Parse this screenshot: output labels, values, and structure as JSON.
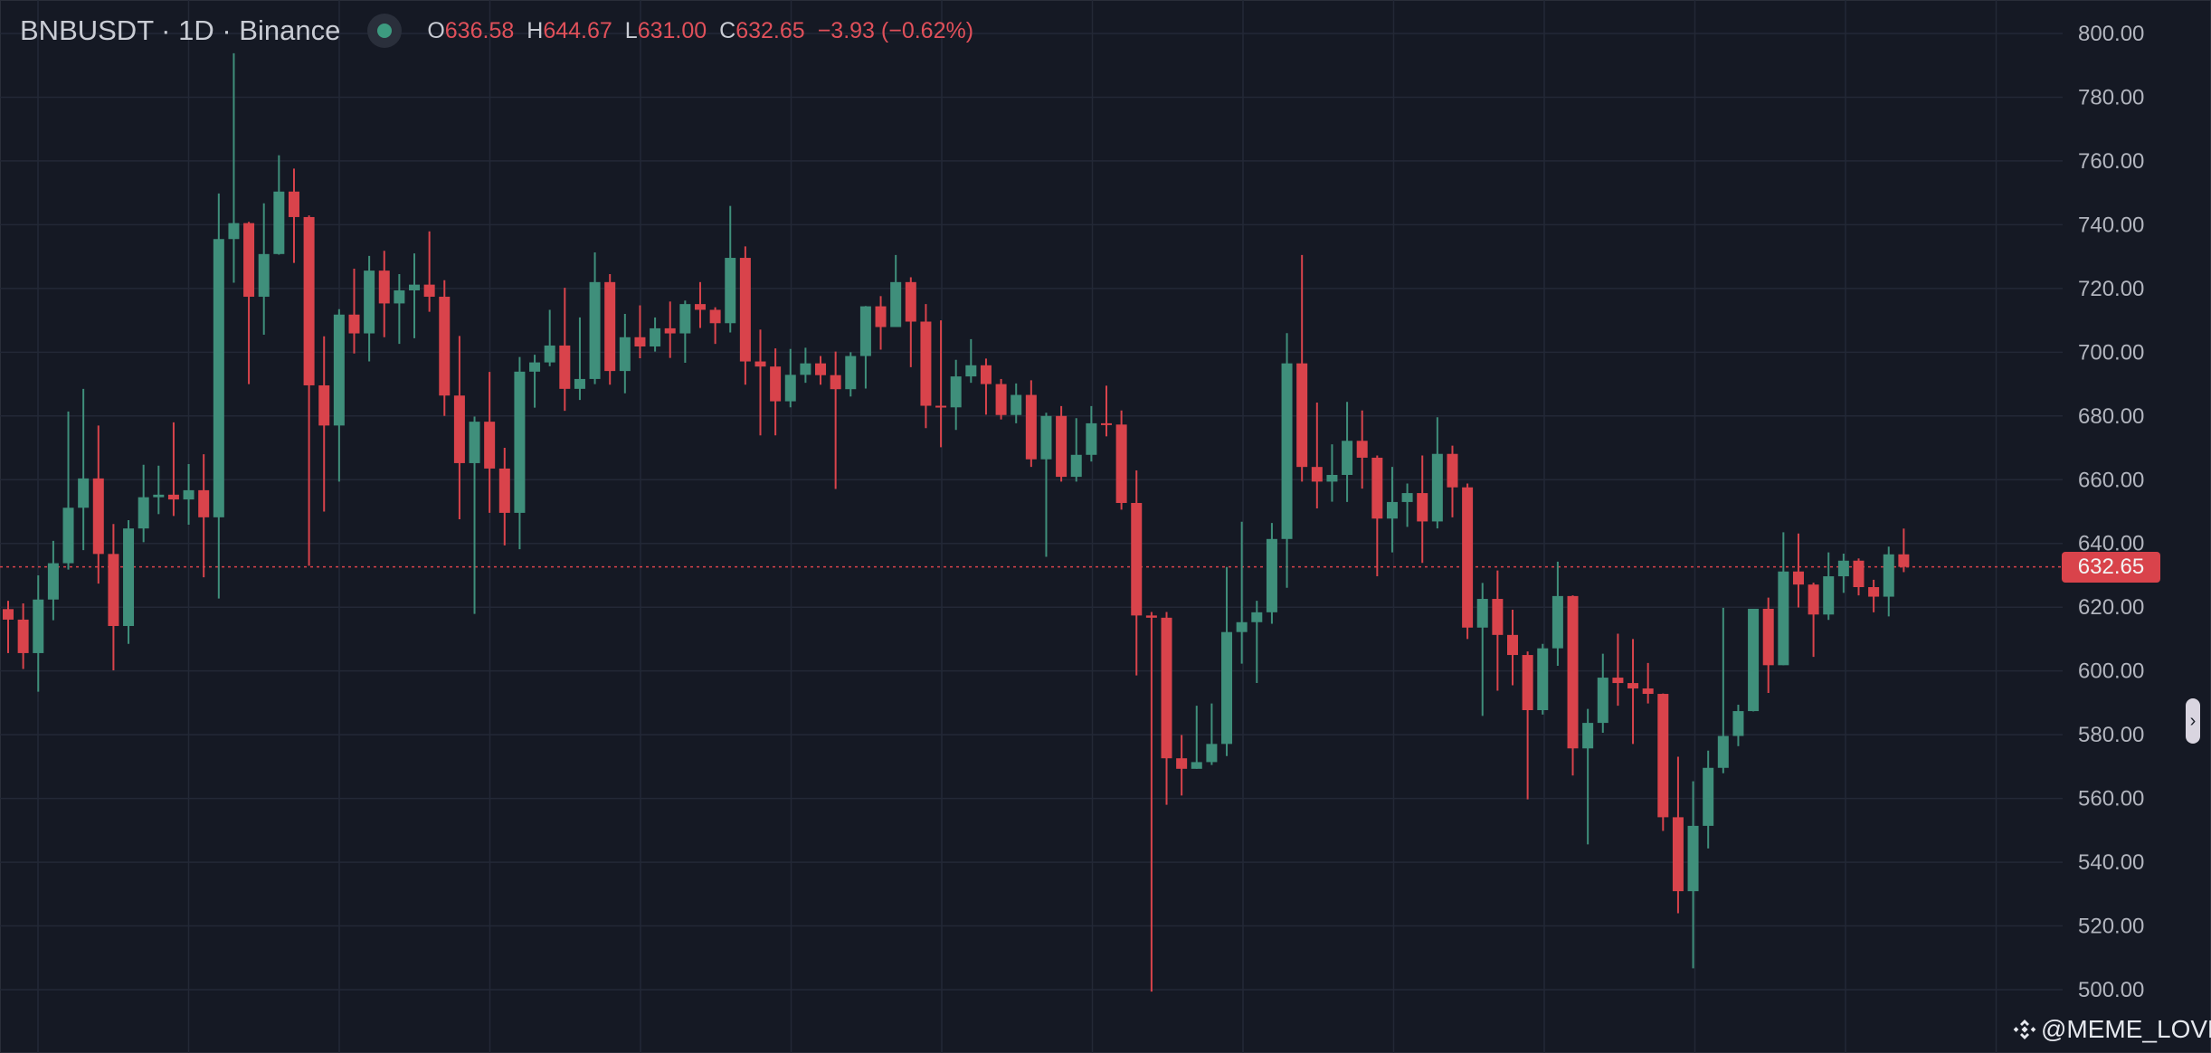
{
  "header": {
    "symbol": "BNBUSDT · 1D · Binance",
    "status_color": "#3d9b80",
    "open_label": "O",
    "open": "636.58",
    "high_label": "H",
    "high": "644.67",
    "low_label": "L",
    "low": "631.00",
    "close_label": "C",
    "close": "632.65",
    "change": "−3.93 (−0.62%)"
  },
  "last_price_tag": "632.65",
  "scroll_button": "›",
  "watermark": {
    "text": "@MEME_LOVER",
    "icon": "binance-logo-icon"
  },
  "colors": {
    "up": "#3f8f7b",
    "down": "#d9434b",
    "background": "#151924",
    "grid": "#232836",
    "axis_text": "#b2b5be"
  },
  "chart_data": {
    "type": "candlestick",
    "title": "",
    "xlabel": "",
    "ylabel": "",
    "ylim": [
      500,
      800
    ],
    "grid": true,
    "y_axis_position": "right",
    "y_ticks": [
      "800.00",
      "780.00",
      "760.00",
      "740.00",
      "720.00",
      "700.00",
      "680.00",
      "660.00",
      "640.00",
      "620.00",
      "600.00",
      "580.00",
      "560.00",
      "540.00",
      "520.00",
      "500.00"
    ],
    "last_price": 632.65,
    "candles": [
      {
        "o": 619.4,
        "h": 622.0,
        "l": 605.6,
        "c": 616.1
      },
      {
        "o": 616.1,
        "h": 621.2,
        "l": 600.6,
        "c": 605.6
      },
      {
        "o": 605.6,
        "h": 630.0,
        "l": 593.5,
        "c": 622.4
      },
      {
        "o": 622.4,
        "h": 640.8,
        "l": 615.9,
        "c": 633.8
      },
      {
        "o": 633.8,
        "h": 681.4,
        "l": 631.8,
        "c": 651.2
      },
      {
        "o": 651.2,
        "h": 688.5,
        "l": 637.9,
        "c": 660.4
      },
      {
        "o": 660.4,
        "h": 677.0,
        "l": 627.4,
        "c": 636.7
      },
      {
        "o": 636.7,
        "h": 646.1,
        "l": 600.2,
        "c": 614.1
      },
      {
        "o": 614.1,
        "h": 647.3,
        "l": 608.5,
        "c": 644.7
      },
      {
        "o": 644.7,
        "h": 664.7,
        "l": 640.4,
        "c": 654.5
      },
      {
        "o": 654.5,
        "h": 664.4,
        "l": 649.2,
        "c": 655.3
      },
      {
        "o": 655.3,
        "h": 678.0,
        "l": 648.6,
        "c": 653.8
      },
      {
        "o": 653.8,
        "h": 664.9,
        "l": 645.9,
        "c": 656.7
      },
      {
        "o": 656.7,
        "h": 668.0,
        "l": 629.4,
        "c": 648.2
      },
      {
        "o": 648.2,
        "h": 749.8,
        "l": 622.7,
        "c": 735.5
      },
      {
        "o": 735.5,
        "h": 793.8,
        "l": 721.8,
        "c": 740.5
      },
      {
        "o": 740.5,
        "h": 740.9,
        "l": 690.0,
        "c": 717.4
      },
      {
        "o": 717.4,
        "h": 746.7,
        "l": 705.5,
        "c": 730.8
      },
      {
        "o": 730.8,
        "h": 761.8,
        "l": 730.6,
        "c": 750.4
      },
      {
        "o": 750.4,
        "h": 757.6,
        "l": 728.0,
        "c": 742.4
      },
      {
        "o": 742.4,
        "h": 742.9,
        "l": 633.0,
        "c": 689.6
      },
      {
        "o": 689.6,
        "h": 705.0,
        "l": 650.0,
        "c": 677.0
      },
      {
        "o": 677.0,
        "h": 713.5,
        "l": 659.4,
        "c": 711.8
      },
      {
        "o": 711.8,
        "h": 726.2,
        "l": 699.6,
        "c": 705.9
      },
      {
        "o": 705.9,
        "h": 730.2,
        "l": 697.1,
        "c": 725.6
      },
      {
        "o": 725.6,
        "h": 731.8,
        "l": 704.7,
        "c": 715.3
      },
      {
        "o": 715.3,
        "h": 724.5,
        "l": 702.6,
        "c": 719.4
      },
      {
        "o": 719.4,
        "h": 731.0,
        "l": 704.4,
        "c": 721.2
      },
      {
        "o": 721.2,
        "h": 737.9,
        "l": 712.7,
        "c": 717.4
      },
      {
        "o": 717.4,
        "h": 722.6,
        "l": 680.0,
        "c": 686.4
      },
      {
        "o": 686.4,
        "h": 705.1,
        "l": 647.6,
        "c": 665.2
      },
      {
        "o": 665.2,
        "h": 679.8,
        "l": 617.9,
        "c": 678.2
      },
      {
        "o": 678.2,
        "h": 693.8,
        "l": 649.6,
        "c": 663.5
      },
      {
        "o": 663.5,
        "h": 670.0,
        "l": 639.4,
        "c": 649.6
      },
      {
        "o": 649.6,
        "h": 698.5,
        "l": 638.2,
        "c": 693.9
      },
      {
        "o": 693.9,
        "h": 699.2,
        "l": 682.6,
        "c": 696.8
      },
      {
        "o": 696.8,
        "h": 713.3,
        "l": 695.6,
        "c": 702.1
      },
      {
        "o": 702.1,
        "h": 720.2,
        "l": 681.6,
        "c": 688.5
      },
      {
        "o": 688.5,
        "h": 710.9,
        "l": 685.0,
        "c": 691.6
      },
      {
        "o": 691.6,
        "h": 731.3,
        "l": 690.0,
        "c": 722.0
      },
      {
        "o": 722.0,
        "h": 724.5,
        "l": 689.8,
        "c": 694.1
      },
      {
        "o": 694.1,
        "h": 712.0,
        "l": 687.1,
        "c": 704.7
      },
      {
        "o": 704.7,
        "h": 714.7,
        "l": 698.1,
        "c": 701.8
      },
      {
        "o": 701.8,
        "h": 710.9,
        "l": 700.2,
        "c": 707.5
      },
      {
        "o": 707.5,
        "h": 715.9,
        "l": 698.2,
        "c": 705.9
      },
      {
        "o": 705.9,
        "h": 716.2,
        "l": 696.7,
        "c": 715.1
      },
      {
        "o": 715.1,
        "h": 722.0,
        "l": 707.6,
        "c": 713.3
      },
      {
        "o": 713.3,
        "h": 714.1,
        "l": 702.6,
        "c": 709.1
      },
      {
        "o": 709.1,
        "h": 745.9,
        "l": 706.2,
        "c": 729.6
      },
      {
        "o": 729.6,
        "h": 733.2,
        "l": 689.8,
        "c": 697.1
      },
      {
        "o": 697.1,
        "h": 707.1,
        "l": 673.9,
        "c": 695.5
      },
      {
        "o": 695.5,
        "h": 701.2,
        "l": 673.9,
        "c": 684.6
      },
      {
        "o": 684.6,
        "h": 701.0,
        "l": 682.7,
        "c": 692.9
      },
      {
        "o": 692.9,
        "h": 701.4,
        "l": 690.4,
        "c": 696.5
      },
      {
        "o": 696.5,
        "h": 698.8,
        "l": 689.8,
        "c": 692.8
      },
      {
        "o": 692.8,
        "h": 700.2,
        "l": 657.1,
        "c": 688.4
      },
      {
        "o": 688.4,
        "h": 700.0,
        "l": 686.1,
        "c": 698.8
      },
      {
        "o": 698.8,
        "h": 714.5,
        "l": 688.6,
        "c": 714.4
      },
      {
        "o": 714.4,
        "h": 717.6,
        "l": 700.8,
        "c": 707.9
      },
      {
        "o": 707.9,
        "h": 730.5,
        "l": 707.9,
        "c": 722.0
      },
      {
        "o": 722.0,
        "h": 723.5,
        "l": 695.3,
        "c": 709.6
      },
      {
        "o": 709.6,
        "h": 715.1,
        "l": 676.2,
        "c": 683.2
      },
      {
        "o": 683.2,
        "h": 710.0,
        "l": 670.2,
        "c": 682.7
      },
      {
        "o": 682.7,
        "h": 697.6,
        "l": 675.6,
        "c": 692.4
      },
      {
        "o": 692.4,
        "h": 704.1,
        "l": 690.4,
        "c": 695.9
      },
      {
        "o": 695.9,
        "h": 698.0,
        "l": 680.4,
        "c": 690.0
      },
      {
        "o": 690.0,
        "h": 691.6,
        "l": 678.9,
        "c": 680.3
      },
      {
        "o": 680.3,
        "h": 690.2,
        "l": 677.7,
        "c": 686.6
      },
      {
        "o": 686.6,
        "h": 691.2,
        "l": 664.0,
        "c": 666.4
      },
      {
        "o": 666.4,
        "h": 681.0,
        "l": 635.8,
        "c": 680.0
      },
      {
        "o": 680.0,
        "h": 683.1,
        "l": 659.4,
        "c": 660.9
      },
      {
        "o": 660.9,
        "h": 679.3,
        "l": 659.4,
        "c": 667.8
      },
      {
        "o": 667.8,
        "h": 683.1,
        "l": 665.7,
        "c": 677.7
      },
      {
        "o": 677.7,
        "h": 689.5,
        "l": 673.6,
        "c": 677.3
      },
      {
        "o": 677.3,
        "h": 681.7,
        "l": 650.6,
        "c": 652.7
      },
      {
        "o": 652.7,
        "h": 662.9,
        "l": 598.6,
        "c": 617.4
      },
      {
        "o": 617.4,
        "h": 618.5,
        "l": 499.4,
        "c": 616.7
      },
      {
        "o": 616.7,
        "h": 618.5,
        "l": 558.0,
        "c": 572.6
      },
      {
        "o": 572.6,
        "h": 579.9,
        "l": 560.9,
        "c": 569.3
      },
      {
        "o": 569.3,
        "h": 589.1,
        "l": 569.3,
        "c": 571.4
      },
      {
        "o": 571.4,
        "h": 589.8,
        "l": 570.5,
        "c": 577.1
      },
      {
        "o": 577.1,
        "h": 632.6,
        "l": 573.3,
        "c": 612.2
      },
      {
        "o": 612.2,
        "h": 646.8,
        "l": 602.3,
        "c": 615.3
      },
      {
        "o": 615.3,
        "h": 622.0,
        "l": 596.2,
        "c": 618.4
      },
      {
        "o": 618.4,
        "h": 646.4,
        "l": 614.8,
        "c": 641.4
      },
      {
        "o": 641.4,
        "h": 706.0,
        "l": 626.1,
        "c": 696.5
      },
      {
        "o": 696.5,
        "h": 730.5,
        "l": 659.4,
        "c": 664.0
      },
      {
        "o": 664.0,
        "h": 684.2,
        "l": 651.0,
        "c": 659.4
      },
      {
        "o": 659.4,
        "h": 671.1,
        "l": 653.1,
        "c": 661.5
      },
      {
        "o": 661.5,
        "h": 684.4,
        "l": 653.0,
        "c": 672.2
      },
      {
        "o": 672.2,
        "h": 681.7,
        "l": 657.2,
        "c": 666.9
      },
      {
        "o": 666.9,
        "h": 667.6,
        "l": 629.7,
        "c": 647.8
      },
      {
        "o": 647.8,
        "h": 664.0,
        "l": 637.2,
        "c": 653.0
      },
      {
        "o": 653.0,
        "h": 658.8,
        "l": 645.2,
        "c": 655.8
      },
      {
        "o": 655.8,
        "h": 667.6,
        "l": 633.9,
        "c": 646.9
      },
      {
        "o": 646.9,
        "h": 679.6,
        "l": 644.7,
        "c": 668.1
      },
      {
        "o": 668.1,
        "h": 670.7,
        "l": 648.2,
        "c": 657.6
      },
      {
        "o": 657.6,
        "h": 658.8,
        "l": 610.0,
        "c": 613.6
      },
      {
        "o": 613.6,
        "h": 627.6,
        "l": 585.9,
        "c": 622.6
      },
      {
        "o": 622.6,
        "h": 631.5,
        "l": 593.8,
        "c": 611.3
      },
      {
        "o": 611.3,
        "h": 619.2,
        "l": 595.5,
        "c": 605.0
      },
      {
        "o": 605.0,
        "h": 606.1,
        "l": 559.7,
        "c": 587.7
      },
      {
        "o": 587.7,
        "h": 608.5,
        "l": 586.3,
        "c": 607.1
      },
      {
        "o": 607.1,
        "h": 634.3,
        "l": 601.6,
        "c": 623.5
      },
      {
        "o": 623.5,
        "h": 623.7,
        "l": 567.2,
        "c": 575.7
      },
      {
        "o": 575.7,
        "h": 588.1,
        "l": 545.6,
        "c": 583.7
      },
      {
        "o": 583.7,
        "h": 605.4,
        "l": 580.6,
        "c": 597.9
      },
      {
        "o": 597.9,
        "h": 611.7,
        "l": 589.1,
        "c": 596.2
      },
      {
        "o": 596.2,
        "h": 610.0,
        "l": 577.1,
        "c": 594.5
      },
      {
        "o": 594.5,
        "h": 602.5,
        "l": 589.8,
        "c": 592.8
      },
      {
        "o": 592.8,
        "h": 592.9,
        "l": 549.8,
        "c": 554.1
      },
      {
        "o": 554.1,
        "h": 573.1,
        "l": 524.0,
        "c": 530.9
      },
      {
        "o": 530.9,
        "h": 565.4,
        "l": 506.7,
        "c": 551.4
      },
      {
        "o": 551.4,
        "h": 575.0,
        "l": 544.3,
        "c": 569.6
      },
      {
        "o": 569.6,
        "h": 619.8,
        "l": 567.9,
        "c": 579.6
      },
      {
        "o": 579.6,
        "h": 589.4,
        "l": 576.4,
        "c": 587.4
      },
      {
        "o": 587.4,
        "h": 619.5,
        "l": 587.3,
        "c": 619.5
      },
      {
        "o": 619.5,
        "h": 623.0,
        "l": 593.1,
        "c": 601.8
      },
      {
        "o": 601.8,
        "h": 643.5,
        "l": 601.8,
        "c": 631.2
      },
      {
        "o": 631.2,
        "h": 643.1,
        "l": 619.9,
        "c": 627.1
      },
      {
        "o": 627.1,
        "h": 627.7,
        "l": 604.4,
        "c": 617.7
      },
      {
        "o": 617.7,
        "h": 637.2,
        "l": 616.0,
        "c": 629.7
      },
      {
        "o": 629.7,
        "h": 636.8,
        "l": 624.5,
        "c": 634.6
      },
      {
        "o": 634.6,
        "h": 635.3,
        "l": 623.7,
        "c": 626.3
      },
      {
        "o": 626.3,
        "h": 628.6,
        "l": 618.4,
        "c": 623.3
      },
      {
        "o": 623.3,
        "h": 639.0,
        "l": 617.1,
        "c": 636.58
      },
      {
        "o": 636.58,
        "h": 644.67,
        "l": 631.0,
        "c": 632.65
      }
    ]
  }
}
